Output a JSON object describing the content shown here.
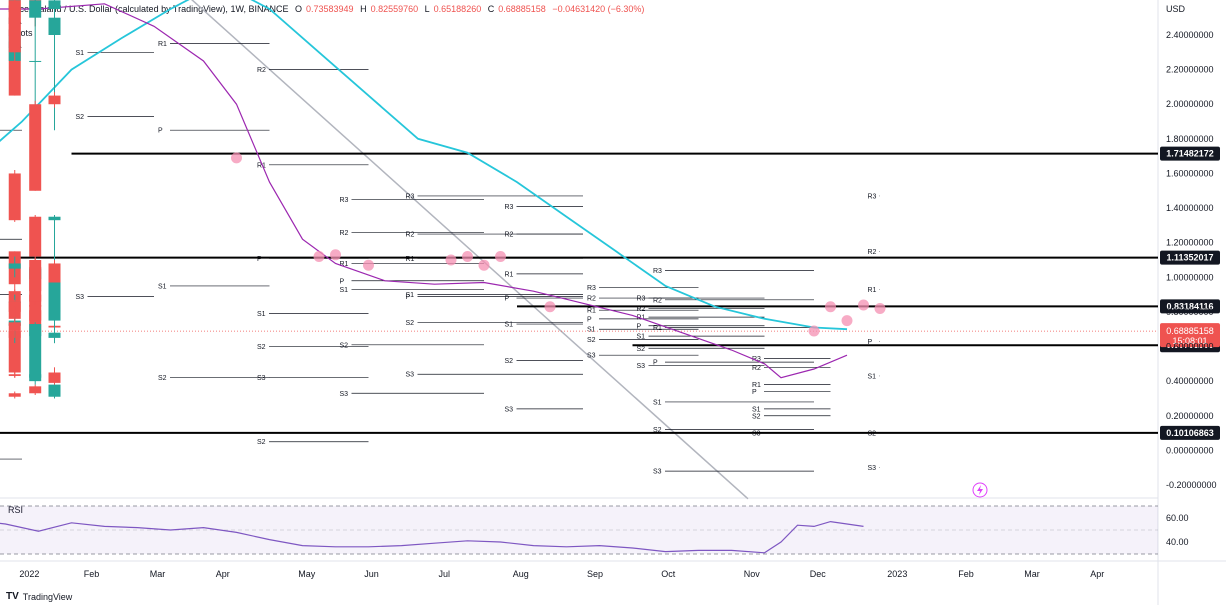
{
  "header": {
    "title": "Decentraland / U.S. Dollar (calculated by TradingView), 1W, BINANCE",
    "open_label": "O",
    "open": "0.73583949",
    "high_label": "H",
    "high": "0.82559760",
    "low_label": "L",
    "low": "0.65188260",
    "close_label": "C",
    "close": "0.68885158",
    "change": "−0.04631420 (−6.30%)"
  },
  "indicators": [
    "MA",
    "Pivots",
    "MA"
  ],
  "rsi_label": "RSI",
  "currency": "USD",
  "footer_brand": "TradingView",
  "colors": {
    "up": "#26a69a",
    "down": "#ef5350",
    "ma_fast": "#9c27b0",
    "ma_slow": "#26c6da",
    "trend": "#b2b5be",
    "rsi": "#7e57c2"
  },
  "chart_data": [
    {
      "type": "candlestick",
      "title": "Decentraland / U.S. Dollar",
      "timeframe": "1W",
      "ylim": [
        -0.25,
        2.6
      ],
      "y_ticks": [
        "2.40000000",
        "2.20000000",
        "2.00000000",
        "1.80000000",
        "1.60000000",
        "1.40000000",
        "1.20000000",
        "1.00000000",
        "0.80000000",
        "0.60000000",
        "0.40000000",
        "0.20000000",
        "0.00000000",
        "-0.20000000"
      ],
      "x_ticks": [
        "2022",
        "Feb",
        "Mar",
        "Apr",
        "May",
        "Jun",
        "Jul",
        "Aug",
        "Sep",
        "Oct",
        "Nov",
        "Dec",
        "2023",
        "Feb",
        "Mar",
        "Apr"
      ],
      "candles": [
        [
          -3,
          2.7,
          3.3,
          2.7,
          3.2
        ],
        [
          1.97,
          2.55,
          2.82,
          1.85,
          2.6
        ],
        [
          0.8,
          2.25,
          2.75,
          1.85,
          2.25
        ],
        [
          -0.44,
          3.05,
          3.1,
          2.5,
          2.6
        ],
        [
          -0.44,
          2.6,
          2.9,
          2.4,
          2.75
        ],
        [
          0.8,
          2.75,
          2.8,
          2.45,
          2.6
        ],
        [
          -0.44,
          2.6,
          2.62,
          2.25,
          2.25
        ],
        [
          -0.44,
          2.25,
          2.4,
          2.2,
          2.4
        ],
        [
          1.97,
          2.4,
          2.55,
          2.35,
          2.5
        ],
        [
          0.8,
          2.5,
          2.7,
          2.45,
          2.6
        ],
        [
          -0.44,
          2.6,
          2.65,
          2.3,
          2.3
        ],
        [
          -0.44,
          2.25,
          2.3,
          2.05,
          2.05
        ],
        [
          1.97,
          2.05,
          2.07,
          1.98,
          2.0
        ],
        [
          0.8,
          2.0,
          2.02,
          1.5,
          1.5
        ],
        [
          -0.44,
          1.6,
          1.62,
          1.32,
          1.33
        ],
        [
          1.97,
          1.33,
          1.36,
          0.62,
          1.35
        ],
        [
          0.8,
          1.35,
          1.36,
          1.1,
          1.12
        ],
        [
          -0.44,
          1.15,
          1.15,
          0.92,
          0.96
        ],
        [
          1.97,
          0.96,
          1.08,
          0.93,
          1.06
        ],
        [
          0.8,
          1.06,
          1.07,
          0.84,
          0.92
        ],
        [
          -0.44,
          0.92,
          0.93,
          0.79,
          0.8
        ],
        [
          1.97,
          0.8,
          0.92,
          0.77,
          0.9
        ],
        [
          0.8,
          0.9,
          0.93,
          0.84,
          0.83
        ],
        [
          -0.44,
          0.86,
          0.9,
          0.83,
          0.86
        ],
        [
          1.97,
          0.86,
          1.0,
          0.85,
          0.99
        ],
        [
          0.8,
          0.99,
          1.06,
          0.96,
          1.05
        ],
        [
          -0.44,
          1.05,
          1.12,
          1.0,
          1.08
        ],
        [
          1.97,
          1.08,
          1.1,
          0.97,
          0.97
        ],
        [
          0.8,
          1.1,
          1.11,
          0.82,
          0.86
        ],
        [
          -0.44,
          0.86,
          0.87,
          0.75,
          0.76
        ],
        [
          1.97,
          0.76,
          0.82,
          0.75,
          0.81
        ],
        [
          0.8,
          0.81,
          0.83,
          0.7,
          0.71
        ],
        [
          -0.44,
          0.73,
          0.74,
          0.7,
          0.72
        ],
        [
          1.97,
          0.72,
          0.73,
          0.69,
          0.71
        ],
        [
          0.8,
          0.71,
          0.72,
          0.65,
          0.7
        ],
        [
          -0.44,
          0.69,
          0.7,
          0.62,
          0.65
        ],
        [
          1.97,
          0.65,
          0.68,
          0.62,
          0.68
        ],
        [
          0.8,
          0.66,
          0.72,
          0.62,
          0.7
        ],
        [
          -0.44,
          0.69,
          0.73,
          0.42,
          0.45
        ],
        [
          1.97,
          0.45,
          0.48,
          0.4,
          0.42
        ],
        [
          0.8,
          0.42,
          0.45,
          0.4,
          0.44
        ],
        [
          -0.44,
          0.44,
          0.45,
          0.42,
          0.43
        ],
        [
          1.97,
          0.43,
          0.44,
          0.38,
          0.39
        ],
        [
          0.8,
          0.37,
          0.38,
          0.32,
          0.33
        ],
        [
          -0.44,
          0.33,
          0.34,
          0.3,
          0.31
        ],
        [
          1.97,
          0.31,
          0.38,
          0.3,
          0.38
        ],
        [
          0.8,
          0.4,
          0.74,
          0.38,
          0.73
        ],
        [
          -0.44,
          0.72,
          0.77,
          0.62,
          0.75
        ],
        [
          1.97,
          0.75,
          0.85,
          0.64,
          0.84
        ],
        [
          0.8,
          0.84,
          0.86,
          0.75,
          0.75
        ],
        [
          -0.44,
          0.74,
          0.83,
          0.65,
          0.69
        ]
      ],
      "ma_fast": [
        [
          -3,
          2.55
        ],
        [
          1,
          2.55
        ],
        [
          5,
          2.58
        ],
        [
          8,
          2.45
        ],
        [
          11,
          2.25
        ],
        [
          13,
          2.0
        ],
        [
          15,
          1.55
        ],
        [
          17,
          1.22
        ],
        [
          19,
          1.08
        ],
        [
          22,
          0.98
        ],
        [
          25,
          0.96
        ],
        [
          28,
          0.97
        ],
        [
          31,
          0.92
        ],
        [
          34,
          0.85
        ],
        [
          37,
          0.78
        ],
        [
          40,
          0.68
        ],
        [
          43,
          0.58
        ],
        [
          45,
          0.5
        ],
        [
          46,
          0.42
        ],
        [
          48,
          0.47
        ],
        [
          50,
          0.55
        ]
      ],
      "ma_slow": [
        [
          -3,
          1.65
        ],
        [
          0,
          1.9
        ],
        [
          3,
          2.2
        ],
        [
          6,
          2.38
        ],
        [
          9,
          2.55
        ],
        [
          12,
          2.7
        ],
        [
          15,
          2.55
        ],
        [
          18,
          2.3
        ],
        [
          21,
          2.05
        ],
        [
          24,
          1.8
        ],
        [
          27,
          1.72
        ],
        [
          30,
          1.55
        ],
        [
          33,
          1.35
        ],
        [
          36,
          1.15
        ],
        [
          39,
          0.95
        ],
        [
          42,
          0.83
        ],
        [
          45,
          0.76
        ],
        [
          48,
          0.71
        ],
        [
          50,
          0.7
        ]
      ],
      "trendline": [
        [
          8,
          2.8
        ],
        [
          44,
          -0.28
        ]
      ],
      "signal_markers": [
        [
          13,
          1.69
        ],
        [
          18,
          1.12
        ],
        [
          19,
          1.13
        ],
        [
          21,
          1.07
        ],
        [
          26,
          1.1
        ],
        [
          27,
          1.12
        ],
        [
          28,
          1.07
        ],
        [
          29,
          1.12
        ],
        [
          32,
          0.83
        ],
        [
          48,
          0.69
        ],
        [
          49,
          0.83
        ],
        [
          50,
          0.75
        ],
        [
          51,
          0.84
        ],
        [
          52,
          0.82
        ]
      ],
      "horizontal_levels": [
        {
          "value": 1.71482172,
          "label": "1.71482172",
          "start": 3
        },
        {
          "value": 1.11352017,
          "label": "1.11352017",
          "start": -3
        },
        {
          "value": 0.83184116,
          "label": "0.83184116",
          "start": 30
        },
        {
          "value": 0.60762508,
          "label": "0.60762508",
          "start": 37
        },
        {
          "value": 0.10106863,
          "label": "0.10106863",
          "start": -3
        }
      ],
      "current_price": {
        "value": 0.68885158,
        "label": "0.68885158",
        "countdown": "15:08:01"
      },
      "pivots": [
        {
          "i0": -3,
          "i1": 0,
          "lines": [
            [
              "S1",
              1.85
            ],
            [
              "S2",
              0.9
            ],
            [
              "S3",
              0.1
            ],
            [
              "R1",
              1.22
            ],
            [
              "P",
              -0.05
            ]
          ]
        },
        {
          "i0": 3,
          "i1": 8,
          "lines": [
            [
              "S1",
              2.3
            ],
            [
              "S2",
              1.93
            ],
            [
              "S3",
              0.89
            ]
          ]
        },
        {
          "i0": 8,
          "i1": 15,
          "lines": [
            [
              "R1",
              2.35
            ],
            [
              "P",
              1.85
            ],
            [
              "S1",
              0.95
            ],
            [
              "S2",
              0.42
            ]
          ]
        },
        {
          "i0": 14,
          "i1": 21,
          "lines": [
            [
              "R2",
              2.2
            ],
            [
              "R1",
              1.65
            ],
            [
              "P",
              1.11
            ],
            [
              "S1",
              0.79
            ],
            [
              "S2",
              0.6
            ],
            [
              "S3",
              0.42
            ],
            [
              "S2",
              0.05
            ]
          ]
        },
        {
          "i0": 19,
          "i1": 28,
          "lines": [
            [
              "R3",
              1.45
            ],
            [
              "R2",
              1.26
            ],
            [
              "R1",
              1.08
            ],
            [
              "P",
              0.98
            ],
            [
              "S1",
              0.93
            ],
            [
              "S2",
              0.61
            ],
            [
              "S3",
              0.33
            ]
          ]
        },
        {
          "i0": 23,
          "i1": 34,
          "lines": [
            [
              "R3",
              1.47
            ],
            [
              "R2",
              1.25
            ],
            [
              "R1",
              1.11
            ],
            [
              "P",
              0.89
            ],
            [
              "S1",
              0.9
            ],
            [
              "S2",
              0.74
            ],
            [
              "S3",
              0.44
            ]
          ]
        },
        {
          "i0": 29,
          "i1": 34,
          "lines": [
            [
              "R3",
              1.41
            ],
            [
              "R2",
              1.25
            ],
            [
              "R1",
              1.02
            ],
            [
              "P",
              0.88
            ],
            [
              "S1",
              0.73
            ],
            [
              "S2",
              0.52
            ],
            [
              "S3",
              0.24
            ]
          ]
        },
        {
          "i0": 34,
          "i1": 41,
          "lines": [
            [
              "R3",
              0.94
            ],
            [
              "R2",
              0.88
            ],
            [
              "R1",
              0.81
            ],
            [
              "P",
              0.76
            ],
            [
              "S1",
              0.7
            ],
            [
              "S2",
              0.64
            ],
            [
              "S3",
              0.55
            ]
          ]
        },
        {
          "i0": 37,
          "i1": 45,
          "lines": [
            [
              "R3",
              0.88
            ],
            [
              "R2",
              0.82
            ],
            [
              "R1",
              0.77
            ],
            [
              "P",
              0.72
            ],
            [
              "S1",
              0.66
            ],
            [
              "S2",
              0.59
            ],
            [
              "S3",
              0.49
            ]
          ]
        },
        {
          "i0": 38,
          "i1": 48,
          "lines": [
            [
              "R3",
              1.04
            ],
            [
              "R2",
              0.87
            ],
            [
              "R1",
              0.71
            ],
            [
              "P",
              0.51
            ],
            [
              "S1",
              0.28
            ],
            [
              "S2",
              0.12
            ],
            [
              "S3",
              -0.12
            ]
          ]
        },
        {
          "i0": 44,
          "i1": 49,
          "lines": [
            [
              "R3",
              0.53
            ],
            [
              "R2",
              0.48
            ],
            [
              "R1",
              0.38
            ],
            [
              "P",
              0.34
            ],
            [
              "S1",
              0.24
            ],
            [
              "S2",
              0.2
            ],
            [
              "S3",
              0.1
            ]
          ]
        },
        {
          "i0": 51,
          "i1": 52,
          "lines": [
            [
              "R3",
              1.47
            ],
            [
              "R2",
              1.15
            ],
            [
              "R1",
              0.93
            ],
            [
              "P",
              0.63
            ],
            [
              "S1",
              0.43
            ],
            [
              "S2",
              0.1
            ],
            [
              "S3",
              -0.1
            ]
          ]
        }
      ]
    },
    {
      "type": "line",
      "title": "RSI",
      "y_ticks": [
        "60.00",
        "40.00"
      ],
      "ylim": [
        28,
        75
      ],
      "rsi": [
        [
          -3,
          58
        ],
        [
          -1,
          55
        ],
        [
          1,
          49
        ],
        [
          3,
          56
        ],
        [
          5,
          53
        ],
        [
          7,
          52
        ],
        [
          9,
          50
        ],
        [
          11,
          52
        ],
        [
          13,
          48
        ],
        [
          15,
          42
        ],
        [
          17,
          37
        ],
        [
          19,
          36
        ],
        [
          21,
          36
        ],
        [
          23,
          37
        ],
        [
          25,
          39
        ],
        [
          27,
          41
        ],
        [
          29,
          40
        ],
        [
          31,
          37
        ],
        [
          33,
          36
        ],
        [
          35,
          37
        ],
        [
          37,
          35
        ],
        [
          39,
          32
        ],
        [
          41,
          33
        ],
        [
          43,
          33
        ],
        [
          45,
          31
        ],
        [
          46,
          40
        ],
        [
          47,
          54
        ],
        [
          48,
          53
        ],
        [
          49,
          57
        ],
        [
          50,
          55
        ],
        [
          51,
          53
        ]
      ]
    }
  ]
}
